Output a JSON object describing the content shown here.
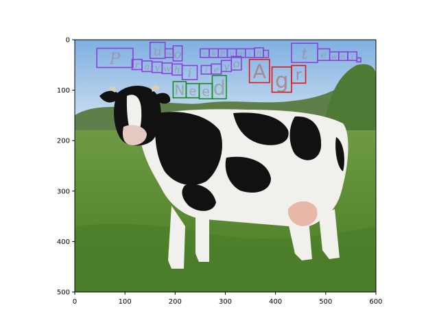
{
  "chart_data": {
    "type": "image",
    "xlim": [
      0,
      600
    ],
    "ylim": [
      500,
      0
    ],
    "x_ticks": [
      "0",
      "100",
      "200",
      "300",
      "400",
      "500",
      "600"
    ],
    "y_ticks": [
      "0",
      "100",
      "200",
      "300",
      "400",
      "500"
    ],
    "x_tick_values": [
      0,
      100,
      200,
      300,
      400,
      500,
      600
    ],
    "y_tick_values": [
      0,
      100,
      200,
      300,
      400,
      500
    ],
    "overlay_phrases": [
      {
        "text": "Pray while you work",
        "color": "#8b3fd9"
      },
      {
        "text": "Ruminate while you dawdle",
        "color": "#8b3fd9"
      },
      {
        "text": "Need",
        "color": "#1a8a1a"
      },
      {
        "text": "Agr",
        "color": "#e01515"
      }
    ],
    "boxes": [
      {
        "x0": 44,
        "y0": 17,
        "x1": 116,
        "y1": 55,
        "color": "#8b3fd9"
      },
      {
        "x0": 114,
        "y0": 39,
        "x1": 134,
        "y1": 59,
        "color": "#8b3fd9"
      },
      {
        "x0": 134,
        "y0": 42,
        "x1": 154,
        "y1": 63,
        "color": "#8b3fd9"
      },
      {
        "x0": 154,
        "y0": 44,
        "x1": 174,
        "y1": 65,
        "color": "#8b3fd9"
      },
      {
        "x0": 174,
        "y0": 46,
        "x1": 194,
        "y1": 67,
        "color": "#8b3fd9"
      },
      {
        "x0": 194,
        "y0": 48,
        "x1": 214,
        "y1": 70,
        "color": "#8b3fd9"
      },
      {
        "x0": 214,
        "y0": 51,
        "x1": 244,
        "y1": 79,
        "color": "#8b3fd9"
      },
      {
        "x0": 252,
        "y0": 51,
        "x1": 272,
        "y1": 68,
        "color": "#8b3fd9"
      },
      {
        "x0": 272,
        "y0": 48,
        "x1": 292,
        "y1": 68,
        "color": "#8b3fd9"
      },
      {
        "x0": 292,
        "y0": 41,
        "x1": 312,
        "y1": 63,
        "color": "#8b3fd9"
      },
      {
        "x0": 312,
        "y0": 33,
        "x1": 332,
        "y1": 60,
        "color": "#8b3fd9"
      },
      {
        "x0": 150,
        "y0": 5,
        "x1": 180,
        "y1": 37,
        "color": "#8b3fd9"
      },
      {
        "x0": 180,
        "y0": 18,
        "x1": 196,
        "y1": 35,
        "color": "#8b3fd9"
      },
      {
        "x0": 196,
        "y0": 12,
        "x1": 214,
        "y1": 42,
        "color": "#8b3fd9"
      },
      {
        "x0": 250,
        "y0": 18,
        "x1": 268,
        "y1": 35,
        "color": "#8b3fd9"
      },
      {
        "x0": 268,
        "y0": 18,
        "x1": 286,
        "y1": 35,
        "color": "#8b3fd9"
      },
      {
        "x0": 286,
        "y0": 18,
        "x1": 304,
        "y1": 35,
        "color": "#8b3fd9"
      },
      {
        "x0": 304,
        "y0": 18,
        "x1": 322,
        "y1": 35,
        "color": "#8b3fd9"
      },
      {
        "x0": 322,
        "y0": 18,
        "x1": 340,
        "y1": 35,
        "color": "#8b3fd9"
      },
      {
        "x0": 340,
        "y0": 18,
        "x1": 358,
        "y1": 35,
        "color": "#8b3fd9"
      },
      {
        "x0": 358,
        "y0": 16,
        "x1": 376,
        "y1": 35,
        "color": "#8b3fd9"
      },
      {
        "x0": 376,
        "y0": 21,
        "x1": 386,
        "y1": 35,
        "color": "#8b3fd9"
      },
      {
        "x0": 432,
        "y0": 7,
        "x1": 484,
        "y1": 45,
        "color": "#8b3fd9"
      },
      {
        "x0": 484,
        "y0": 18,
        "x1": 508,
        "y1": 41,
        "color": "#8b3fd9"
      },
      {
        "x0": 508,
        "y0": 24,
        "x1": 526,
        "y1": 41,
        "color": "#8b3fd9"
      },
      {
        "x0": 526,
        "y0": 24,
        "x1": 544,
        "y1": 41,
        "color": "#8b3fd9"
      },
      {
        "x0": 544,
        "y0": 24,
        "x1": 562,
        "y1": 41,
        "color": "#8b3fd9"
      },
      {
        "x0": 562,
        "y0": 36,
        "x1": 570,
        "y1": 44,
        "color": "#8b3fd9"
      },
      {
        "x0": 196,
        "y0": 83,
        "x1": 222,
        "y1": 115,
        "color": "#1a8a1a"
      },
      {
        "x0": 222,
        "y0": 87,
        "x1": 248,
        "y1": 115,
        "color": "#1a8a1a"
      },
      {
        "x0": 248,
        "y0": 87,
        "x1": 274,
        "y1": 117,
        "color": "#1a8a1a"
      },
      {
        "x0": 274,
        "y0": 71,
        "x1": 302,
        "y1": 117,
        "color": "#1a8a1a"
      },
      {
        "x0": 348,
        "y0": 39,
        "x1": 388,
        "y1": 85,
        "color": "#e01515"
      },
      {
        "x0": 393,
        "y0": 54,
        "x1": 432,
        "y1": 104,
        "color": "#e01515"
      },
      {
        "x0": 432,
        "y0": 51,
        "x1": 460,
        "y1": 86,
        "color": "#e01515"
      }
    ]
  }
}
